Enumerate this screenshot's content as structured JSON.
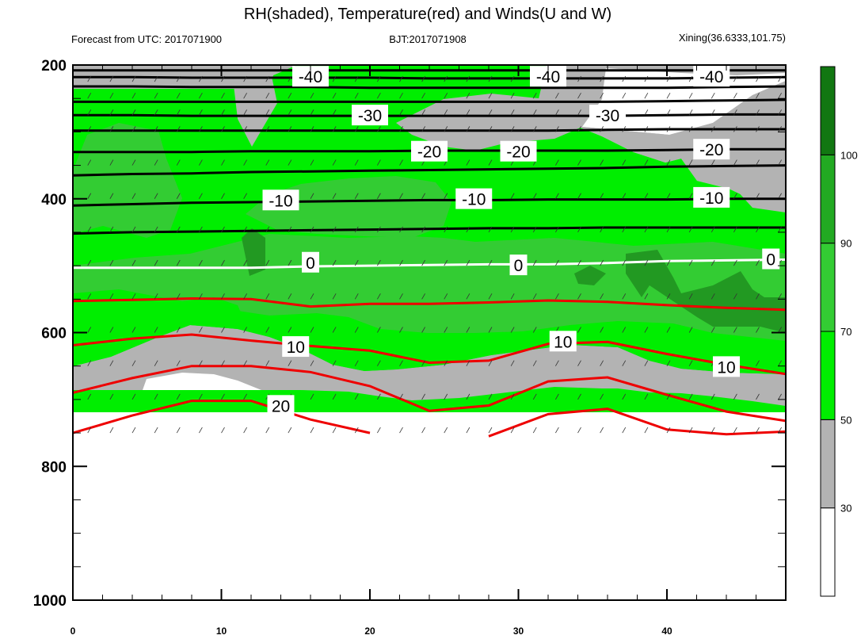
{
  "chart_data": {
    "type": "contour",
    "title": "RH(shaded), Temperature(red) and Winds(U and W)",
    "subtitle_left": "Forecast from UTC: 2017071900",
    "subtitle_center": "BJT:2017071908",
    "subtitle_right": "Xining(36.6333,101.75)",
    "x_ticks": [
      "0",
      "10",
      "20",
      "30",
      "40"
    ],
    "xlim": [
      0,
      48
    ],
    "y_ticks": [
      "200",
      "400",
      "600",
      "800",
      "1000"
    ],
    "ylim": [
      200,
      1000
    ],
    "y_inverted": true,
    "colorbar": {
      "ticks": [
        "30",
        "50",
        "70",
        "90",
        "100"
      ],
      "levels": [
        {
          "from": 0,
          "to": 30,
          "color": "#ffffff"
        },
        {
          "from": 30,
          "to": 50,
          "color": "#b3b3b3"
        },
        {
          "from": 50,
          "to": 70,
          "color": "#00ee00"
        },
        {
          "from": 70,
          "to": 90,
          "color": "#33cc33"
        },
        {
          "from": 90,
          "to": 100,
          "color": "#22aa22"
        },
        {
          "from": 100,
          "to": 110,
          "color": "#117711"
        }
      ]
    },
    "temperature_contours": [
      {
        "value": -40,
        "label": "-40",
        "color": "#000000",
        "y": [
          208,
          208,
          208,
          208,
          208,
          208,
          208,
          208,
          208,
          208,
          208,
          208,
          208
        ]
      },
      {
        "value": null,
        "label": "",
        "color": "#000000",
        "y": [
          218,
          218,
          219,
          219,
          219,
          219,
          220,
          220,
          220,
          220,
          220,
          219,
          218
        ]
      },
      {
        "value": null,
        "label": "",
        "color": "#000000",
        "y": [
          232,
          232,
          233,
          233,
          233,
          234,
          234,
          234,
          234,
          234,
          234,
          233,
          232
        ]
      },
      {
        "value": null,
        "label": "",
        "color": "#000000",
        "y": [
          255,
          255,
          255,
          255,
          255,
          255,
          255,
          255,
          255,
          255,
          254,
          253,
          252
        ]
      },
      {
        "value": -30,
        "label": "-30",
        "color": "#000000",
        "y": [
          275,
          275,
          276,
          276,
          276,
          276,
          276,
          276,
          276,
          276,
          275,
          274,
          274
        ]
      },
      {
        "value": null,
        "label": "",
        "color": "#000000",
        "y": [
          298,
          298,
          298,
          298,
          298,
          298,
          298,
          298,
          298,
          297,
          296,
          296,
          296
        ]
      },
      {
        "value": -20,
        "label": "-20",
        "color": "#000000",
        "y": [
          330,
          330,
          330,
          329,
          329,
          329,
          328,
          328,
          328,
          328,
          327,
          326,
          326
        ]
      },
      {
        "value": null,
        "label": "",
        "color": "#000000",
        "y": [
          365,
          363,
          362,
          360,
          359,
          358,
          357,
          356,
          355,
          354,
          352,
          351,
          350
        ]
      },
      {
        "value": -10,
        "label": "-10",
        "color": "#000000",
        "y": [
          410,
          408,
          406,
          405,
          404,
          403,
          402,
          402,
          401,
          401,
          401,
          400,
          400
        ]
      },
      {
        "value": null,
        "label": "",
        "color": "#000000",
        "y": [
          452,
          450,
          449,
          448,
          447,
          446,
          445,
          444,
          444,
          443,
          443,
          443,
          443
        ]
      },
      {
        "value": 0,
        "label": "0",
        "color": "#ffffff",
        "y": [
          503,
          503,
          503,
          503,
          501,
          500,
          499,
          498,
          498,
          496,
          493,
          492,
          491
        ]
      },
      {
        "value": null,
        "label": "",
        "color": "#ee0000",
        "y": [
          553,
          551,
          549,
          550,
          561,
          557,
          557,
          555,
          552,
          554,
          559,
          563,
          566
        ]
      },
      {
        "value": 10,
        "label": "10",
        "color": "#ee0000",
        "y": [
          619,
          609,
          603,
          612,
          620,
          627,
          645,
          642,
          617,
          614,
          632,
          648,
          662
        ]
      },
      {
        "value": null,
        "label": "",
        "color": "#ee0000",
        "y": [
          690,
          668,
          650,
          650,
          659,
          680,
          717,
          709,
          673,
          667,
          693,
          718,
          732
        ]
      },
      {
        "value": 20,
        "label": "20",
        "color": "#ee0000",
        "y": [
          750,
          724,
          702,
          702,
          730,
          750,
          null,
          755,
          722,
          714,
          745,
          752,
          748
        ]
      }
    ],
    "contour_labels": [
      {
        "text": "-40",
        "x": 16,
        "y": 218
      },
      {
        "text": "-40",
        "x": 32,
        "y": 218
      },
      {
        "text": "-40",
        "x": 43,
        "y": 218
      },
      {
        "text": "-30",
        "x": 20,
        "y": 276
      },
      {
        "text": "-30",
        "x": 36,
        "y": 276
      },
      {
        "text": "-20",
        "x": 24,
        "y": 330
      },
      {
        "text": "-20",
        "x": 30,
        "y": 330
      },
      {
        "text": "-20",
        "x": 43,
        "y": 327
      },
      {
        "text": "-10",
        "x": 14,
        "y": 403
      },
      {
        "text": "-10",
        "x": 27,
        "y": 401
      },
      {
        "text": "-10",
        "x": 43,
        "y": 399
      },
      {
        "text": "0",
        "x": 16,
        "y": 496
      },
      {
        "text": "0",
        "x": 30,
        "y": 500
      },
      {
        "text": "0",
        "x": 47,
        "y": 491
      },
      {
        "text": "10",
        "x": 15,
        "y": 622
      },
      {
        "text": "10",
        "x": 33,
        "y": 614
      },
      {
        "text": "10",
        "x": 44,
        "y": 652
      },
      {
        "text": "20",
        "x": 14,
        "y": 710
      }
    ]
  }
}
